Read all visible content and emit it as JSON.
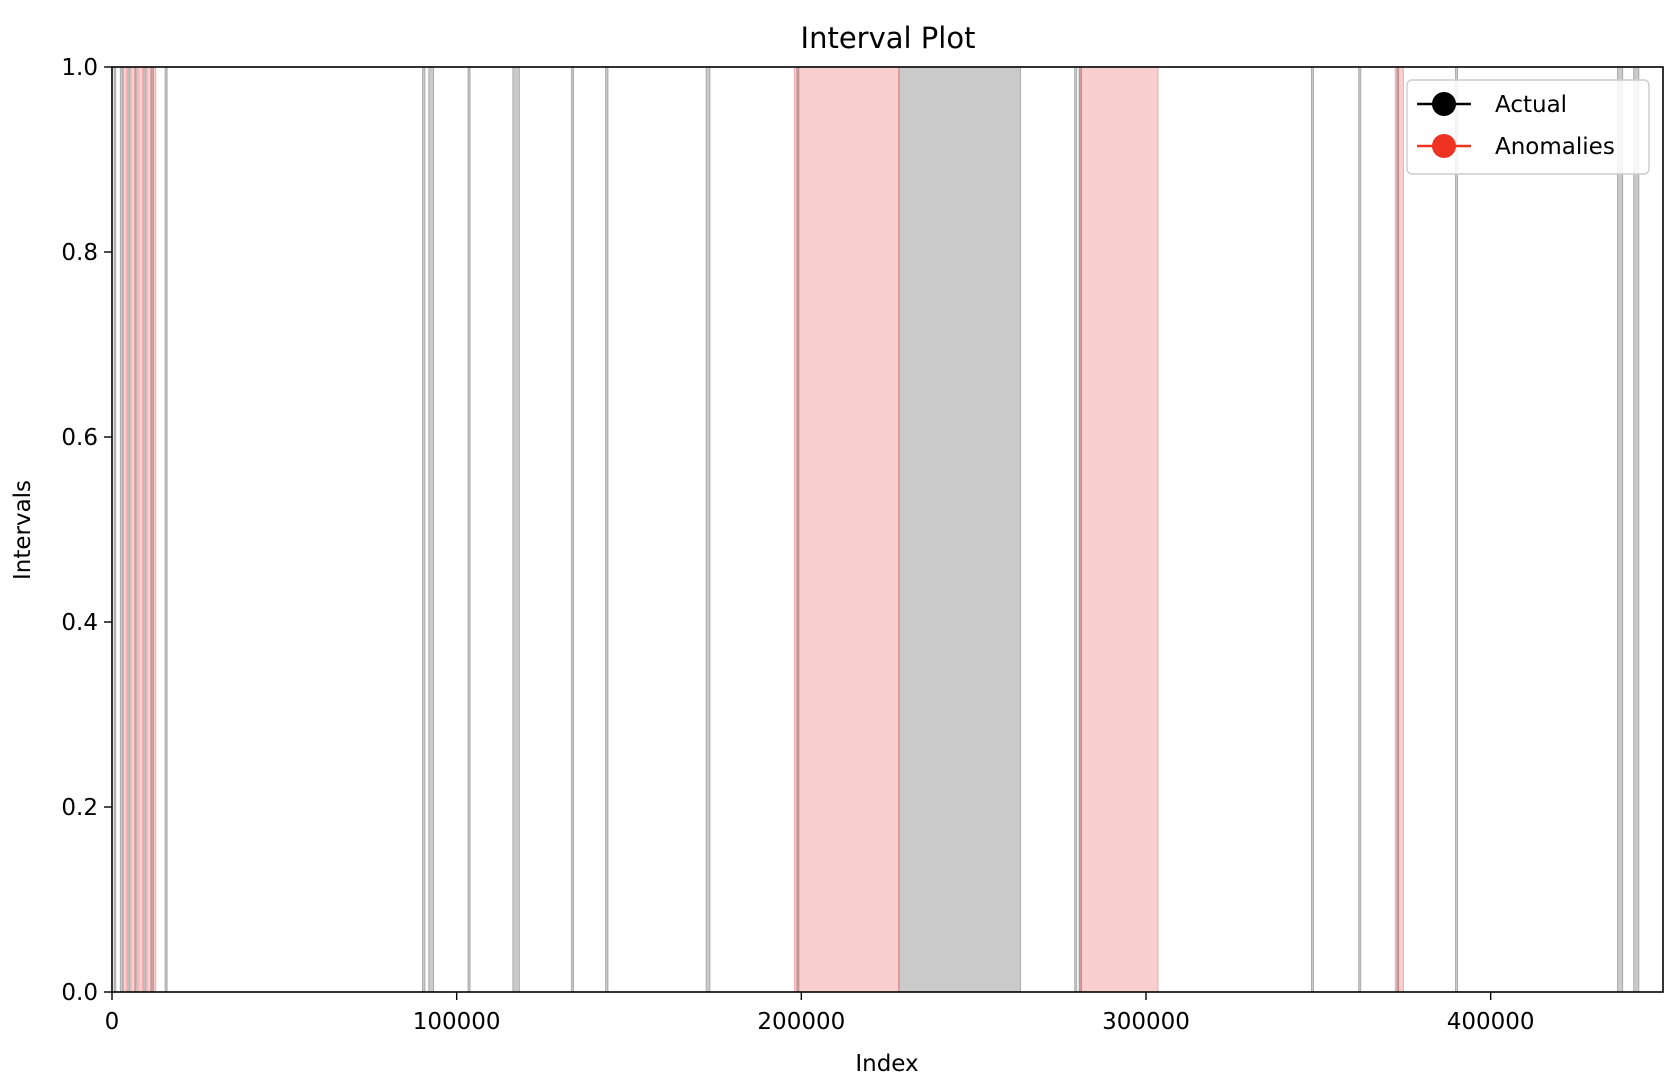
{
  "chart_data": {
    "type": "interval",
    "title": "Interval Plot",
    "xlabel": "Index",
    "ylabel": "Intervals",
    "xlim": [
      0,
      450000
    ],
    "ylim": [
      0,
      1
    ],
    "xticks": [
      {
        "value": 0,
        "label": "0"
      },
      {
        "value": 100000,
        "label": "100000"
      },
      {
        "value": 200000,
        "label": "200000"
      },
      {
        "value": 300000,
        "label": "300000"
      },
      {
        "value": 400000,
        "label": "400000"
      }
    ],
    "yticks": [
      {
        "value": 0.0,
        "label": "0.0"
      },
      {
        "value": 0.2,
        "label": "0.2"
      },
      {
        "value": 0.4,
        "label": "0.4"
      },
      {
        "value": 0.6,
        "label": "0.6"
      },
      {
        "value": 0.8,
        "label": "0.8"
      },
      {
        "value": 1.0,
        "label": "1.0"
      }
    ],
    "grid": false,
    "legend": {
      "placement": "top-right",
      "entries": [
        {
          "label": "Actual",
          "color": "#000000"
        },
        {
          "label": "Anomalies",
          "color": "#ee3322"
        }
      ]
    },
    "series": [
      {
        "name": "Actual",
        "color": "#888888",
        "intervals": [
          [
            600,
            1100
          ],
          [
            2400,
            3100
          ],
          [
            4600,
            5200
          ],
          [
            6700,
            7300
          ],
          [
            9200,
            9800
          ],
          [
            11300,
            12000
          ],
          [
            15400,
            16000
          ],
          [
            90100,
            90800
          ],
          [
            91900,
            93300
          ],
          [
            103300,
            103900
          ],
          [
            116300,
            118200
          ],
          [
            133300,
            133900
          ],
          [
            143200,
            143900
          ],
          [
            172400,
            173500
          ],
          [
            198700,
            199300
          ],
          [
            228300,
            263600
          ],
          [
            279300,
            279900
          ],
          [
            280600,
            281300
          ],
          [
            348000,
            348600
          ],
          [
            361700,
            362300
          ],
          [
            372800,
            373300
          ],
          [
            389800,
            390400
          ],
          [
            436800,
            438300
          ],
          [
            441500,
            443000
          ]
        ]
      },
      {
        "name": "Anomalies",
        "color": "#ee3322",
        "intervals": [
          [
            3300,
            4300
          ],
          [
            5500,
            6700
          ],
          [
            7700,
            8900
          ],
          [
            10100,
            12700
          ],
          [
            198000,
            228300
          ],
          [
            280800,
            303500
          ],
          [
            372300,
            374700
          ]
        ]
      }
    ]
  }
}
